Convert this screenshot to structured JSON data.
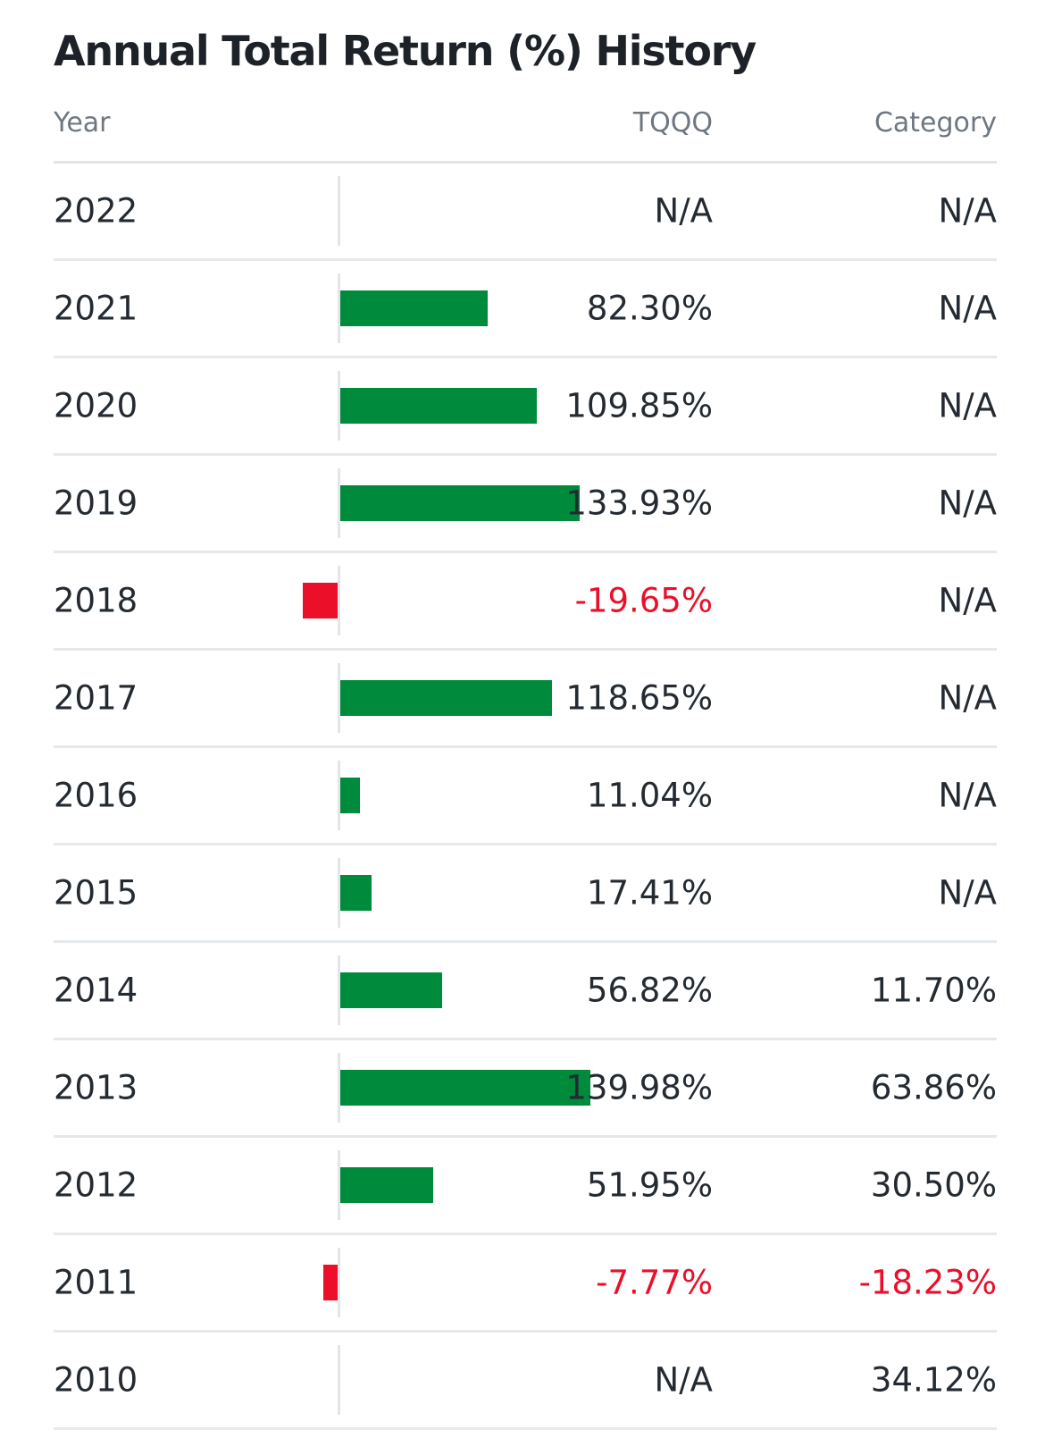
{
  "title": "Annual Total Return (%) History",
  "columns": {
    "year": "Year",
    "fund": "TQQQ",
    "category": "Category"
  },
  "colors": {
    "positive": "#008a3c",
    "negative": "#eb0f29"
  },
  "chart_data": {
    "type": "bar",
    "title": "Annual Total Return (%) History",
    "categories": [
      "2022",
      "2021",
      "2020",
      "2019",
      "2018",
      "2017",
      "2016",
      "2015",
      "2014",
      "2013",
      "2012",
      "2011",
      "2010"
    ],
    "series": [
      {
        "name": "TQQQ",
        "values": [
          null,
          82.3,
          109.85,
          133.93,
          -19.65,
          118.65,
          11.04,
          17.41,
          56.82,
          139.98,
          51.95,
          -7.77,
          null
        ]
      },
      {
        "name": "Category",
        "values": [
          null,
          null,
          null,
          null,
          null,
          null,
          null,
          null,
          11.7,
          63.86,
          30.5,
          -18.23,
          34.12
        ]
      }
    ]
  },
  "rows": [
    {
      "year": "2022",
      "fund": "N/A",
      "category": "N/A",
      "value": null
    },
    {
      "year": "2021",
      "fund": "82.30%",
      "category": "N/A",
      "value": 82.3
    },
    {
      "year": "2020",
      "fund": "109.85%",
      "category": "N/A",
      "value": 109.85
    },
    {
      "year": "2019",
      "fund": "133.93%",
      "category": "N/A",
      "value": 133.93
    },
    {
      "year": "2018",
      "fund": "-19.65%",
      "category": "N/A",
      "value": -19.65
    },
    {
      "year": "2017",
      "fund": "118.65%",
      "category": "N/A",
      "value": 118.65
    },
    {
      "year": "2016",
      "fund": "11.04%",
      "category": "N/A",
      "value": 11.04
    },
    {
      "year": "2015",
      "fund": "17.41%",
      "category": "N/A",
      "value": 17.41
    },
    {
      "year": "2014",
      "fund": "56.82%",
      "category": "11.70%",
      "value": 56.82
    },
    {
      "year": "2013",
      "fund": "139.98%",
      "category": "63.86%",
      "value": 139.98
    },
    {
      "year": "2012",
      "fund": "51.95%",
      "category": "30.50%",
      "value": 51.95
    },
    {
      "year": "2011",
      "fund": "-7.77%",
      "category": "-18.23%",
      "value": -7.77
    },
    {
      "year": "2010",
      "fund": "N/A",
      "category": "34.12%",
      "value": null
    }
  ]
}
